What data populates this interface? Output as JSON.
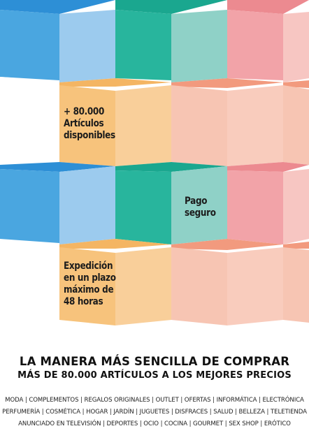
{
  "features": {
    "articles": "+ 80.000\nArtículos\ndisponibles",
    "payment": "Pago\nseguro",
    "shipping": "Expedición\nen un plazo\nmáximo de\n48 horas"
  },
  "headline": {
    "title": "LA MANERA MÁS SENCILLA DE COMPRAR",
    "subtitle": "MÁS DE 80.000 ARTÍCULOS A LOS MEJORES PRECIOS"
  },
  "categories": {
    "line1": "MODA | COMPLEMENTOS | REGALOS ORIGINALES | OUTLET | OFERTAS | INFORMÁTICA |  ELECTRÓNICA",
    "line2": "PERFUMERÍA | COSMÉTICA | HOGAR | JARDÍN | JUGUETES | DISFRACES | SALUD | BELLEZA | TELETIENDA",
    "line3": "ANUNCIADO EN TELEVISIÓN | DEPORTES | OCIO | COCINA | GOURMET  | SEX SHOP | ERÓTICO"
  },
  "colors": {
    "blue": "#4aa6e0",
    "teal": "#2ab8a0",
    "pink": "#f2a3a8",
    "orange": "#f7c37c",
    "peach": "#f7c5b3"
  }
}
